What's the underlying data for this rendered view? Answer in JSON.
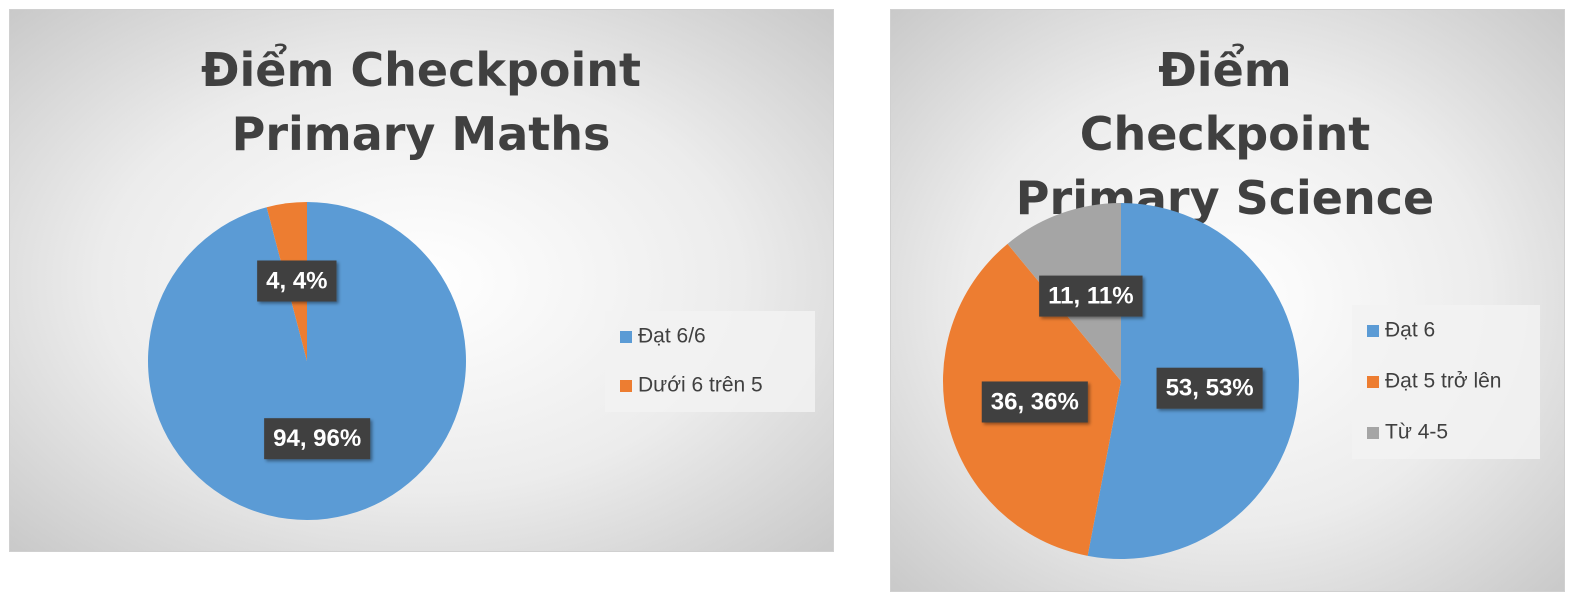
{
  "chart_data": [
    {
      "type": "pie",
      "title": "Điểm Checkpoint Primary Maths",
      "categories": [
        "Đạt 6/6",
        "Dưới 6 trên 5"
      ],
      "values": [
        94,
        4
      ],
      "value_labels": [
        "94, 96%",
        "4, 4%"
      ],
      "colors": [
        "#5b9bd5",
        "#ed7d31"
      ]
    },
    {
      "type": "pie",
      "title": "Điểm Checkpoint Primary Science",
      "categories": [
        "Đạt 6",
        "Đạt 5 trở lên",
        "Từ 4-5"
      ],
      "values": [
        53,
        36,
        11
      ],
      "value_labels": [
        "53, 53%",
        "36, 36%",
        "11, 11%"
      ],
      "colors": [
        "#5b9bd5",
        "#ed7d31",
        "#a5a5a5"
      ]
    }
  ]
}
